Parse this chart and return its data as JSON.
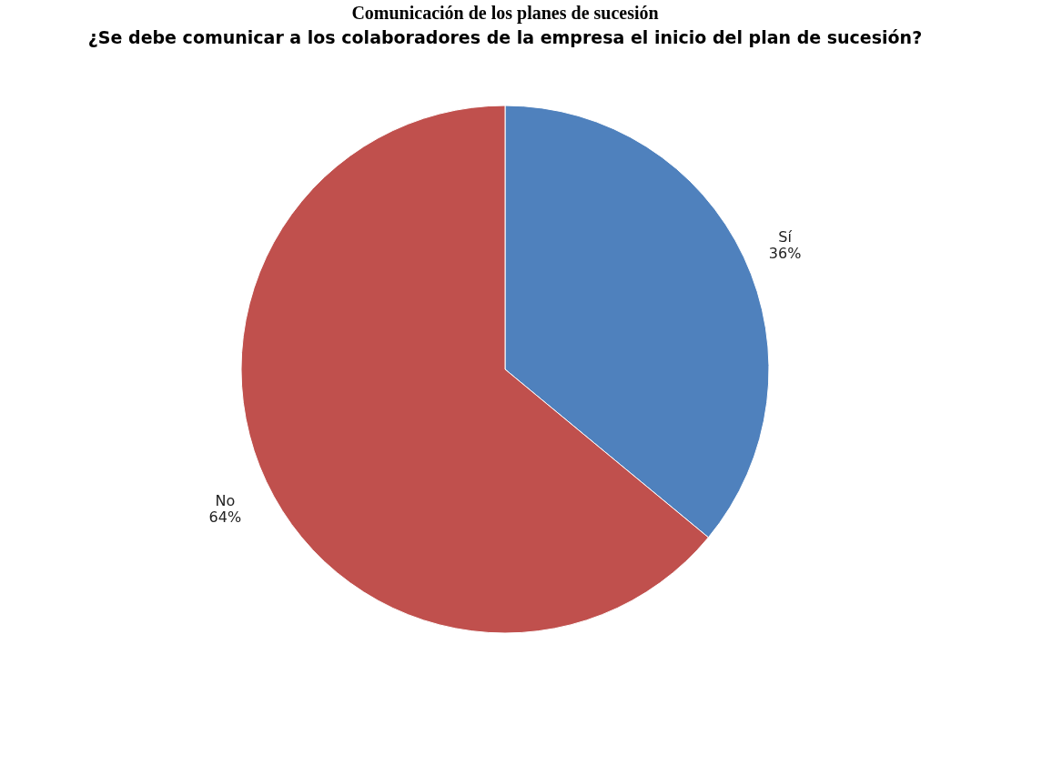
{
  "chart_data": {
    "type": "pie",
    "title": "Comunicación de los planes de sucesión",
    "subtitle": "¿Se debe comunicar a los colaboradores de la empresa el inicio del plan de sucesión?",
    "categories": [
      "Sí",
      "No"
    ],
    "values": [
      36,
      64
    ],
    "value_labels": [
      "36%",
      "64%"
    ],
    "colors": [
      "#4f81bd",
      "#c0504d"
    ],
    "legend": false
  }
}
